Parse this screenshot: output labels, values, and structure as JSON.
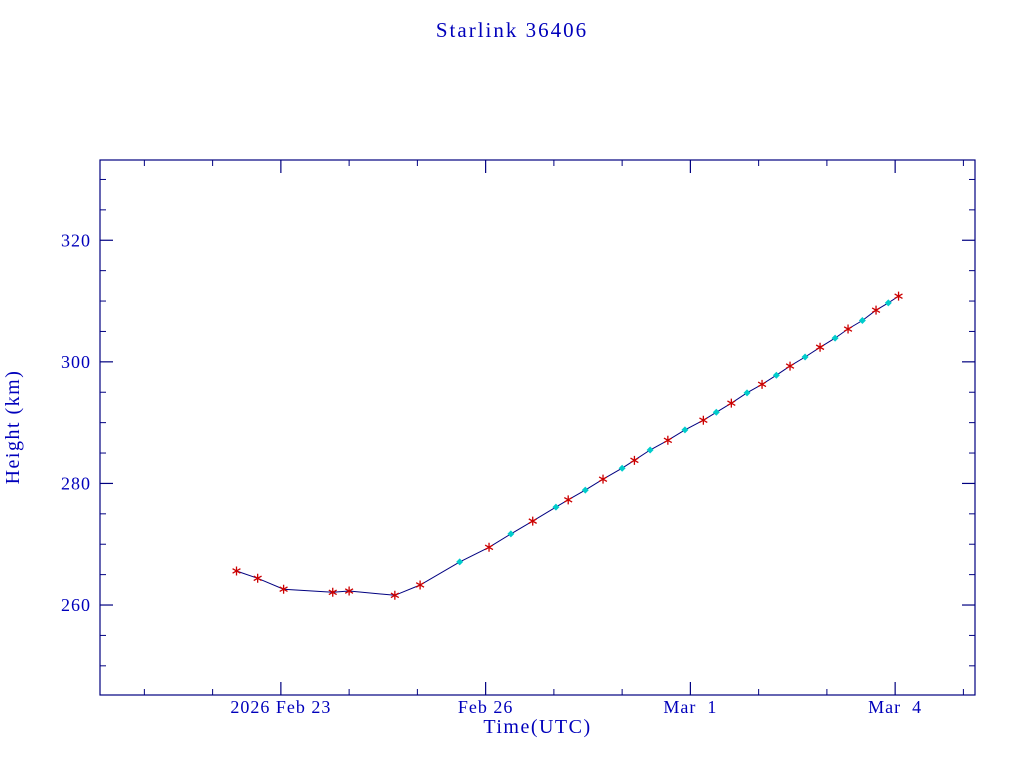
{
  "chart_data": {
    "type": "line",
    "title": "Starlink 36406",
    "xlabel": "Time(UTC)",
    "ylabel": "Height (km)",
    "colors": {
      "text": "#0000bb",
      "axis": "#000080",
      "line": "#000080",
      "marker_red": "#cc0000",
      "marker_cyan": "#00cccc"
    },
    "x_axis": {
      "unit": "days since 2026 Feb 23 00:00 UTC",
      "range": [
        -2.65,
        10.17
      ],
      "major_ticks": [
        {
          "value": 0,
          "label": "2026 Feb 23"
        },
        {
          "value": 3,
          "label": "Feb 26"
        },
        {
          "value": 6,
          "label": "Mar  1"
        },
        {
          "value": 9,
          "label": "Mar  4"
        }
      ],
      "minor_tick_interval": 1
    },
    "y_axis": {
      "range": [
        245.2,
        333.2
      ],
      "major_ticks": [
        260,
        280,
        300,
        320
      ],
      "minor_tick_interval": 5
    },
    "marker_styles": {
      "r": "red asterisk",
      "c": "cyan diamond"
    },
    "point_format": [
      "days_since_2026_Feb_23_00UTC",
      "height_km",
      "marker"
    ],
    "series": [
      {
        "name": "height",
        "points": [
          [
            -0.65,
            265.6,
            "r"
          ],
          [
            -0.34,
            264.4,
            "r"
          ],
          [
            0.04,
            262.6,
            "r"
          ],
          [
            0.76,
            262.1,
            "r"
          ],
          [
            1.0,
            262.3,
            "r"
          ],
          [
            1.67,
            261.6,
            "r"
          ],
          [
            2.04,
            263.3,
            "r"
          ],
          [
            2.62,
            267.1,
            "c"
          ],
          [
            3.05,
            269.5,
            "r"
          ],
          [
            3.37,
            271.7,
            "c"
          ],
          [
            3.69,
            273.8,
            "r"
          ],
          [
            4.03,
            276.1,
            "c"
          ],
          [
            4.21,
            277.3,
            "r"
          ],
          [
            4.46,
            278.9,
            "c"
          ],
          [
            4.72,
            280.7,
            "r"
          ],
          [
            5.0,
            282.5,
            "c"
          ],
          [
            5.18,
            283.8,
            "r"
          ],
          [
            5.41,
            285.5,
            "c"
          ],
          [
            5.67,
            287.1,
            "r"
          ],
          [
            5.92,
            288.8,
            "c"
          ],
          [
            6.19,
            290.4,
            "r"
          ],
          [
            6.38,
            291.7,
            "c"
          ],
          [
            6.6,
            293.2,
            "r"
          ],
          [
            6.83,
            294.9,
            "c"
          ],
          [
            7.05,
            296.3,
            "r"
          ],
          [
            7.26,
            297.8,
            "c"
          ],
          [
            7.46,
            299.3,
            "r"
          ],
          [
            7.68,
            300.8,
            "c"
          ],
          [
            7.9,
            302.4,
            "r"
          ],
          [
            8.12,
            303.9,
            "c"
          ],
          [
            8.31,
            305.4,
            "r"
          ],
          [
            8.52,
            306.8,
            "c"
          ],
          [
            8.72,
            308.5,
            "r"
          ],
          [
            8.9,
            309.7,
            "c"
          ],
          [
            9.05,
            310.8,
            "r"
          ]
        ]
      }
    ]
  }
}
